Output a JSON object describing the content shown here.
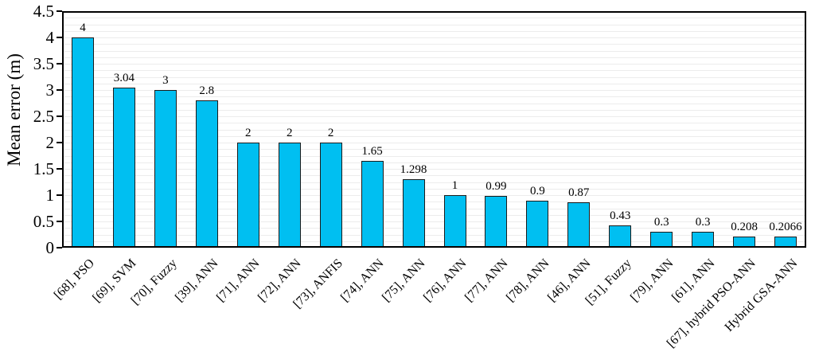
{
  "chart_data": {
    "type": "bar",
    "title": "",
    "xlabel": "",
    "ylabel": "Mean error (m)",
    "ylim": [
      0,
      4.5
    ],
    "ytick_step": 0.5,
    "ytick_labels": [
      "0",
      "0.5",
      "1",
      "1.5",
      "2",
      "2.5",
      "3",
      "3.5",
      "4",
      "4.5"
    ],
    "minor_gridline_step": 0.125,
    "grid": "horizontal-minor-gridlines",
    "legend": "none",
    "bar_value_labels_shown": true,
    "categories": [
      "[68], PSO",
      "[69], SVM",
      "[70], Fuzzy",
      "[39], ANN",
      "[71], ANN",
      "[72], ANN",
      "[73], ANFIS",
      "[74], ANN",
      "[75], ANN",
      "[76], ANN",
      "[77], ANN",
      "[78], ANN",
      "[46], ANN",
      "[51], Fuzzy",
      "[79], ANN",
      "[61], ANN",
      "[67], hybrid PSO-ANN",
      "Hybrid GSA-ANN"
    ],
    "values": [
      4,
      3.04,
      3,
      2.8,
      2,
      2,
      2,
      1.65,
      1.298,
      1,
      0.99,
      0.9,
      0.87,
      0.43,
      0.3,
      0.3,
      0.208,
      0.2066
    ],
    "value_labels": [
      "4",
      "3.04",
      "3",
      "2.8",
      "2",
      "2",
      "2",
      "1.65",
      "1.298",
      "1",
      "0.99",
      "0.9",
      "0.87",
      "0.43",
      "0.3",
      "0.3",
      "0.208",
      "0.2066"
    ],
    "colors": {
      "bar_fill": "#00BFF1",
      "bar_border": "#1B1B1B",
      "gridline": "#ECECEC",
      "axis_frame": "#000000",
      "text": "#000000",
      "background": "#FFFFFF"
    }
  }
}
